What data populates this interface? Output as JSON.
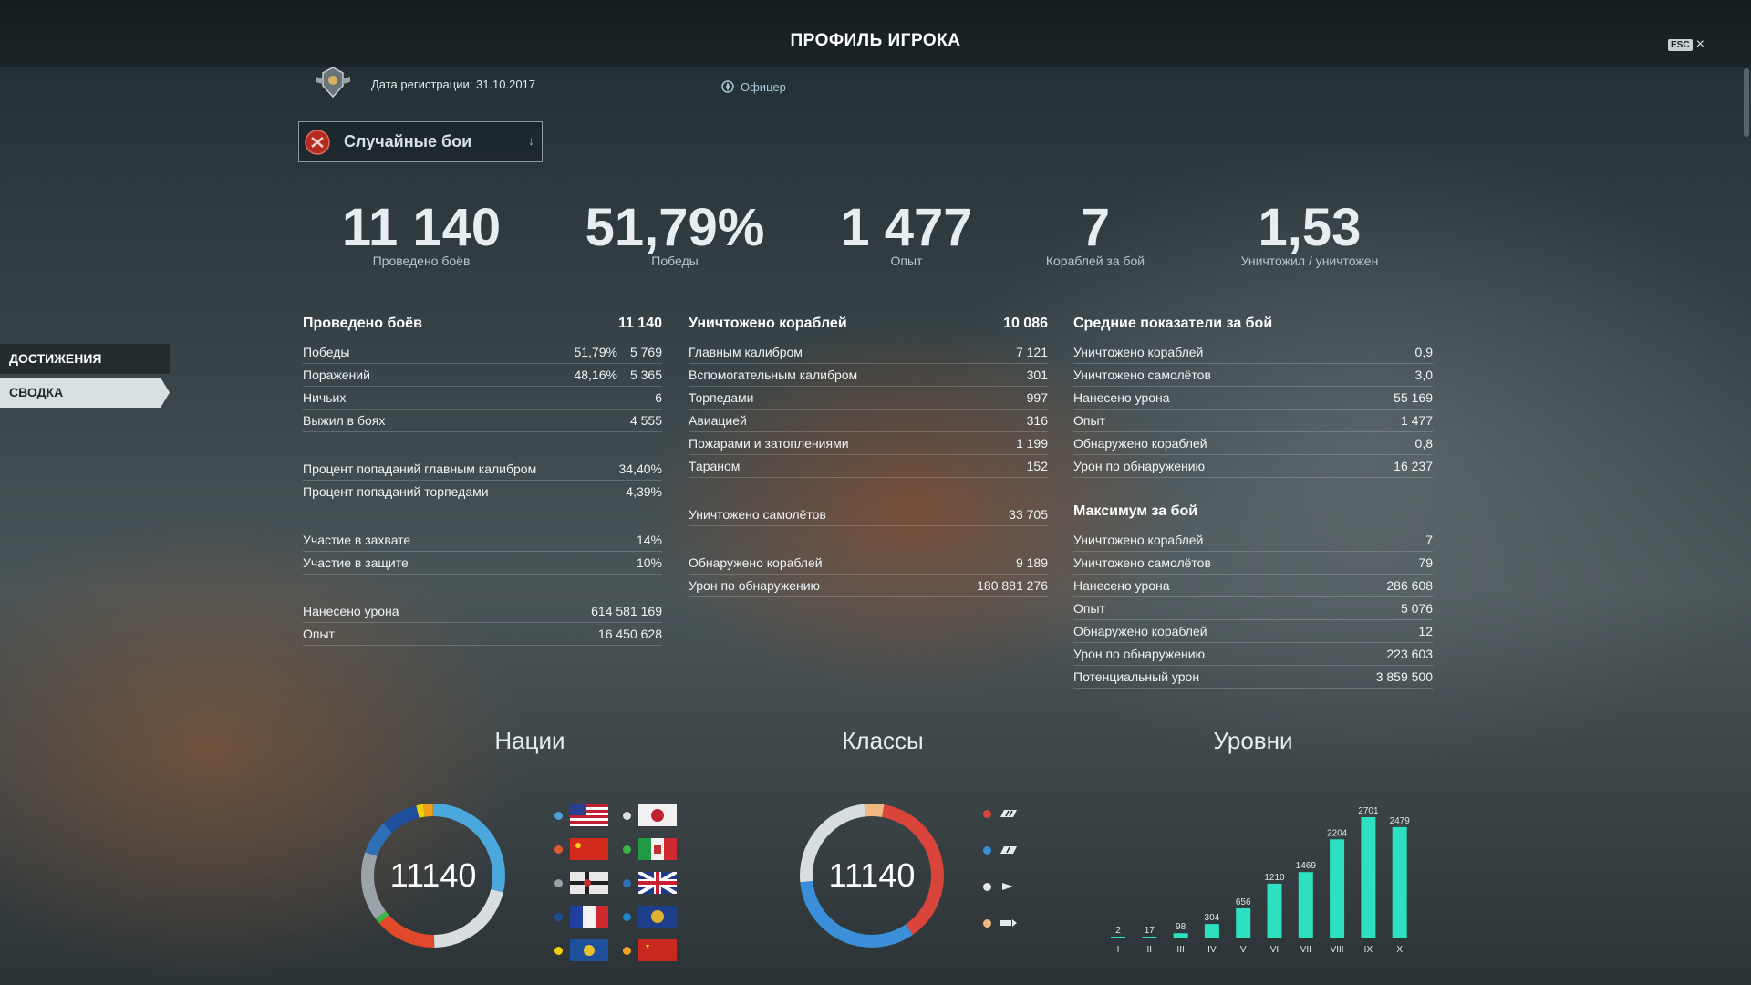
{
  "header": {
    "title": "ПРОФИЛЬ ИГРОКА",
    "esc_key": "ESC",
    "close_icon": "×"
  },
  "profile": {
    "registration": "Дата регистрации: 31.10.2017",
    "rank": "Офицер"
  },
  "mode_select": {
    "label": "Случайные бои",
    "arrow": "↓"
  },
  "big_stats": [
    {
      "value": "11 140",
      "label": "Проведено боёв"
    },
    {
      "value": "51,79%",
      "label": "Победы"
    },
    {
      "value": "1 477",
      "label": "Опыт"
    },
    {
      "value": "7",
      "label": "Кораблей за бой"
    },
    {
      "value": "1,53",
      "label": "Уничтожил / уничтожен"
    }
  ],
  "side_nav": [
    {
      "label": "ДОСТИЖЕНИЯ"
    },
    {
      "label": "СВОДКА"
    }
  ],
  "col1": {
    "header": {
      "label": "Проведено боёв",
      "value": "11 140"
    },
    "rows_a": [
      {
        "label": "Победы",
        "pct": "51,79%",
        "value": "5 769"
      },
      {
        "label": "Поражений",
        "pct": "48,16%",
        "value": "5 365"
      },
      {
        "label": "Ничьих",
        "pct": "",
        "value": "6"
      },
      {
        "label": "Выжил в боях",
        "pct": "",
        "value": "4 555"
      }
    ],
    "rows_b": [
      {
        "label": "Процент попаданий главным калибром",
        "value": "34,40%"
      },
      {
        "label": "Процент попаданий торпедами",
        "value": "4,39%"
      }
    ],
    "rows_c": [
      {
        "label": "Участие в захвате",
        "value": "14%"
      },
      {
        "label": "Участие в защите",
        "value": "10%"
      }
    ],
    "rows_d": [
      {
        "label": "Нанесено урона",
        "value": "614 581 169"
      },
      {
        "label": "Опыт",
        "value": "16 450 628"
      }
    ]
  },
  "col2": {
    "header": {
      "label": "Уничтожено кораблей",
      "value": "10 086"
    },
    "rows_a": [
      {
        "label": "Главным калибром",
        "value": "7 121"
      },
      {
        "label": "Вспомогательным калибром",
        "value": "301"
      },
      {
        "label": "Торпедами",
        "value": "997"
      },
      {
        "label": "Авиацией",
        "value": "316"
      },
      {
        "label": "Пожарами и затоплениями",
        "value": "1 199"
      },
      {
        "label": "Тараном",
        "value": "152"
      }
    ],
    "rows_b": [
      {
        "label": "Уничтожено самолётов",
        "value": "33 705"
      }
    ],
    "rows_c": [
      {
        "label": "Обнаружено кораблей",
        "value": "9 189"
      },
      {
        "label": "Урон по обнаружению",
        "value": "180 881 276"
      }
    ]
  },
  "col3": {
    "header": {
      "label": "Средние показатели за бой"
    },
    "rows_a": [
      {
        "label": "Уничтожено кораблей",
        "value": "0,9"
      },
      {
        "label": "Уничтожено самолётов",
        "value": "3,0"
      },
      {
        "label": "Нанесено урона",
        "value": "55 169"
      },
      {
        "label": "Опыт",
        "value": "1 477"
      },
      {
        "label": "Обнаружено кораблей",
        "value": "0,8"
      },
      {
        "label": "Урон по обнаружению",
        "value": "16 237"
      }
    ],
    "header2": {
      "label": "Максимум за бой"
    },
    "rows_b": [
      {
        "label": "Уничтожено кораблей",
        "value": "7"
      },
      {
        "label": "Уничтожено самолётов",
        "value": "79"
      },
      {
        "label": "Нанесено урона",
        "value": "286 608"
      },
      {
        "label": "Опыт",
        "value": "5 076"
      },
      {
        "label": "Обнаружено кораблей",
        "value": "12"
      },
      {
        "label": "Урон по обнаружению",
        "value": "223 603"
      },
      {
        "label": "Потенциальный урон",
        "value": "3 859 500"
      }
    ]
  },
  "sections": {
    "nations": "Нации",
    "classes": "Классы",
    "tiers": "Уровни"
  },
  "nations": {
    "center": "11140",
    "items": [
      {
        "nation": "USA",
        "dot": "#4a9fd8",
        "flag": "usa-flag-icon"
      },
      {
        "nation": "Japan",
        "dot": "#e0e0e0",
        "flag": "japan-flag-icon"
      },
      {
        "nation": "Pan-Asia",
        "dot": "#e05a30",
        "flag": "china-flag-icon"
      },
      {
        "nation": "Italy",
        "dot": "#3bb54a",
        "flag": "italy-flag-icon"
      },
      {
        "nation": "Germany",
        "dot": "#9aa4a8",
        "flag": "germany-flag-icon"
      },
      {
        "nation": "UK",
        "dot": "#2f6fb5",
        "flag": "uk-flag-icon"
      },
      {
        "nation": "France",
        "dot": "#1e4f9a",
        "flag": "france-flag-icon"
      },
      {
        "nation": "Commonwealth",
        "dot": "#1e88c8",
        "flag": "commonwealth-flag-icon"
      },
      {
        "nation": "Pan-America",
        "dot": "#f0d000",
        "flag": "panamerica-flag-icon"
      },
      {
        "nation": "USSR",
        "dot": "#f0a020",
        "flag": "ussr-flag-icon"
      }
    ]
  },
  "classes": {
    "center": "11140",
    "items": [
      {
        "cls": "battleship-icon",
        "dot": "#d9443b"
      },
      {
        "cls": "cruiser-icon",
        "dot": "#3a8fd8"
      },
      {
        "cls": "destroyer-icon",
        "dot": "#e6e6e6"
      },
      {
        "cls": "carrier-icon",
        "dot": "#f0b880"
      }
    ]
  },
  "chart_data": {
    "type": "bar",
    "title": "Уровни",
    "categories": [
      "I",
      "II",
      "III",
      "IV",
      "V",
      "VI",
      "VII",
      "VIII",
      "IX",
      "X"
    ],
    "values": [
      2,
      17,
      98,
      304,
      656,
      1210,
      1469,
      2204,
      2701,
      2479
    ],
    "color": "#2de0c0"
  },
  "colors": {
    "accent": "#2de0c0",
    "panel": "#1b2528"
  }
}
